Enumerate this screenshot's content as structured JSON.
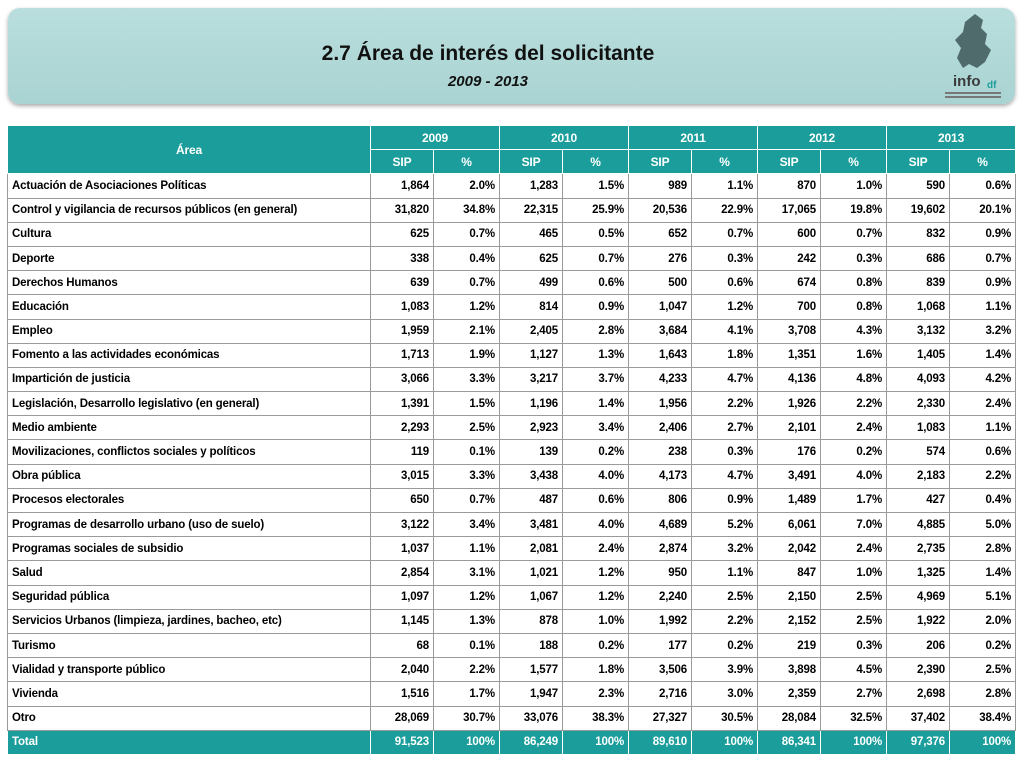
{
  "header": {
    "title": "2.7 Área de interés del solicitante",
    "subtitle": "2009 - 2013",
    "logo": {
      "main": "info",
      "sub": "df"
    }
  },
  "table": {
    "area_header": "Área",
    "columns": [
      {
        "year": "2009",
        "sub": [
          "SIP",
          "%"
        ]
      },
      {
        "year": "2010",
        "sub": [
          "SIP",
          "%"
        ]
      },
      {
        "year": "2011",
        "sub": [
          "SIP",
          "%"
        ]
      },
      {
        "year": "2012",
        "sub": [
          "SIP",
          "%"
        ]
      },
      {
        "year": "2013",
        "sub": [
          "SIP",
          "%"
        ]
      }
    ],
    "rows": [
      [
        "Actuación de Asociaciones Políticas",
        "1,864",
        "2.0%",
        "1,283",
        "1.5%",
        "989",
        "1.1%",
        "870",
        "1.0%",
        "590",
        "0.6%"
      ],
      [
        "Control y vigilancia de recursos públicos (en general)",
        "31,820",
        "34.8%",
        "22,315",
        "25.9%",
        "20,536",
        "22.9%",
        "17,065",
        "19.8%",
        "19,602",
        "20.1%"
      ],
      [
        "Cultura",
        "625",
        "0.7%",
        "465",
        "0.5%",
        "652",
        "0.7%",
        "600",
        "0.7%",
        "832",
        "0.9%"
      ],
      [
        "Deporte",
        "338",
        "0.4%",
        "625",
        "0.7%",
        "276",
        "0.3%",
        "242",
        "0.3%",
        "686",
        "0.7%"
      ],
      [
        "Derechos Humanos",
        "639",
        "0.7%",
        "499",
        "0.6%",
        "500",
        "0.6%",
        "674",
        "0.8%",
        "839",
        "0.9%"
      ],
      [
        "Educación",
        "1,083",
        "1.2%",
        "814",
        "0.9%",
        "1,047",
        "1.2%",
        "700",
        "0.8%",
        "1,068",
        "1.1%"
      ],
      [
        "Empleo",
        "1,959",
        "2.1%",
        "2,405",
        "2.8%",
        "3,684",
        "4.1%",
        "3,708",
        "4.3%",
        "3,132",
        "3.2%"
      ],
      [
        "Fomento a las actividades económicas",
        "1,713",
        "1.9%",
        "1,127",
        "1.3%",
        "1,643",
        "1.8%",
        "1,351",
        "1.6%",
        "1,405",
        "1.4%"
      ],
      [
        "Impartición de justicia",
        "3,066",
        "3.3%",
        "3,217",
        "3.7%",
        "4,233",
        "4.7%",
        "4,136",
        "4.8%",
        "4,093",
        "4.2%"
      ],
      [
        "Legislación, Desarrollo legislativo (en general)",
        "1,391",
        "1.5%",
        "1,196",
        "1.4%",
        "1,956",
        "2.2%",
        "1,926",
        "2.2%",
        "2,330",
        "2.4%"
      ],
      [
        "Medio ambiente",
        "2,293",
        "2.5%",
        "2,923",
        "3.4%",
        "2,406",
        "2.7%",
        "2,101",
        "2.4%",
        "1,083",
        "1.1%"
      ],
      [
        "Movilizaciones, conflictos sociales y políticos",
        "119",
        "0.1%",
        "139",
        "0.2%",
        "238",
        "0.3%",
        "176",
        "0.2%",
        "574",
        "0.6%"
      ],
      [
        "Obra pública",
        "3,015",
        "3.3%",
        "3,438",
        "4.0%",
        "4,173",
        "4.7%",
        "3,491",
        "4.0%",
        "2,183",
        "2.2%"
      ],
      [
        "Procesos electorales",
        "650",
        "0.7%",
        "487",
        "0.6%",
        "806",
        "0.9%",
        "1,489",
        "1.7%",
        "427",
        "0.4%"
      ],
      [
        "Programas de desarrollo urbano (uso de suelo)",
        "3,122",
        "3.4%",
        "3,481",
        "4.0%",
        "4,689",
        "5.2%",
        "6,061",
        "7.0%",
        "4,885",
        "5.0%"
      ],
      [
        "Programas sociales de subsidio",
        "1,037",
        "1.1%",
        "2,081",
        "2.4%",
        "2,874",
        "3.2%",
        "2,042",
        "2.4%",
        "2,735",
        "2.8%"
      ],
      [
        "Salud",
        "2,854",
        "3.1%",
        "1,021",
        "1.2%",
        "950",
        "1.1%",
        "847",
        "1.0%",
        "1,325",
        "1.4%"
      ],
      [
        "Seguridad pública",
        "1,097",
        "1.2%",
        "1,067",
        "1.2%",
        "2,240",
        "2.5%",
        "2,150",
        "2.5%",
        "4,969",
        "5.1%"
      ],
      [
        "Servicios Urbanos (limpieza, jardines, bacheo, etc)",
        "1,145",
        "1.3%",
        "878",
        "1.0%",
        "1,992",
        "2.2%",
        "2,152",
        "2.5%",
        "1,922",
        "2.0%"
      ],
      [
        "Turismo",
        "68",
        "0.1%",
        "188",
        "0.2%",
        "177",
        "0.2%",
        "219",
        "0.3%",
        "206",
        "0.2%"
      ],
      [
        "Vialidad y transporte público",
        "2,040",
        "2.2%",
        "1,577",
        "1.8%",
        "3,506",
        "3.9%",
        "3,898",
        "4.5%",
        "2,390",
        "2.5%"
      ],
      [
        "Vivienda",
        "1,516",
        "1.7%",
        "1,947",
        "2.3%",
        "2,716",
        "3.0%",
        "2,359",
        "2.7%",
        "2,698",
        "2.8%"
      ],
      [
        "Otro",
        "28,069",
        "30.7%",
        "33,076",
        "38.3%",
        "27,327",
        "30.5%",
        "28,084",
        "32.5%",
        "37,402",
        "38.4%"
      ]
    ],
    "total": [
      "Total",
      "91,523",
      "100%",
      "86,249",
      "100%",
      "89,610",
      "100%",
      "86,341",
      "100%",
      "97,376",
      "100%"
    ]
  }
}
